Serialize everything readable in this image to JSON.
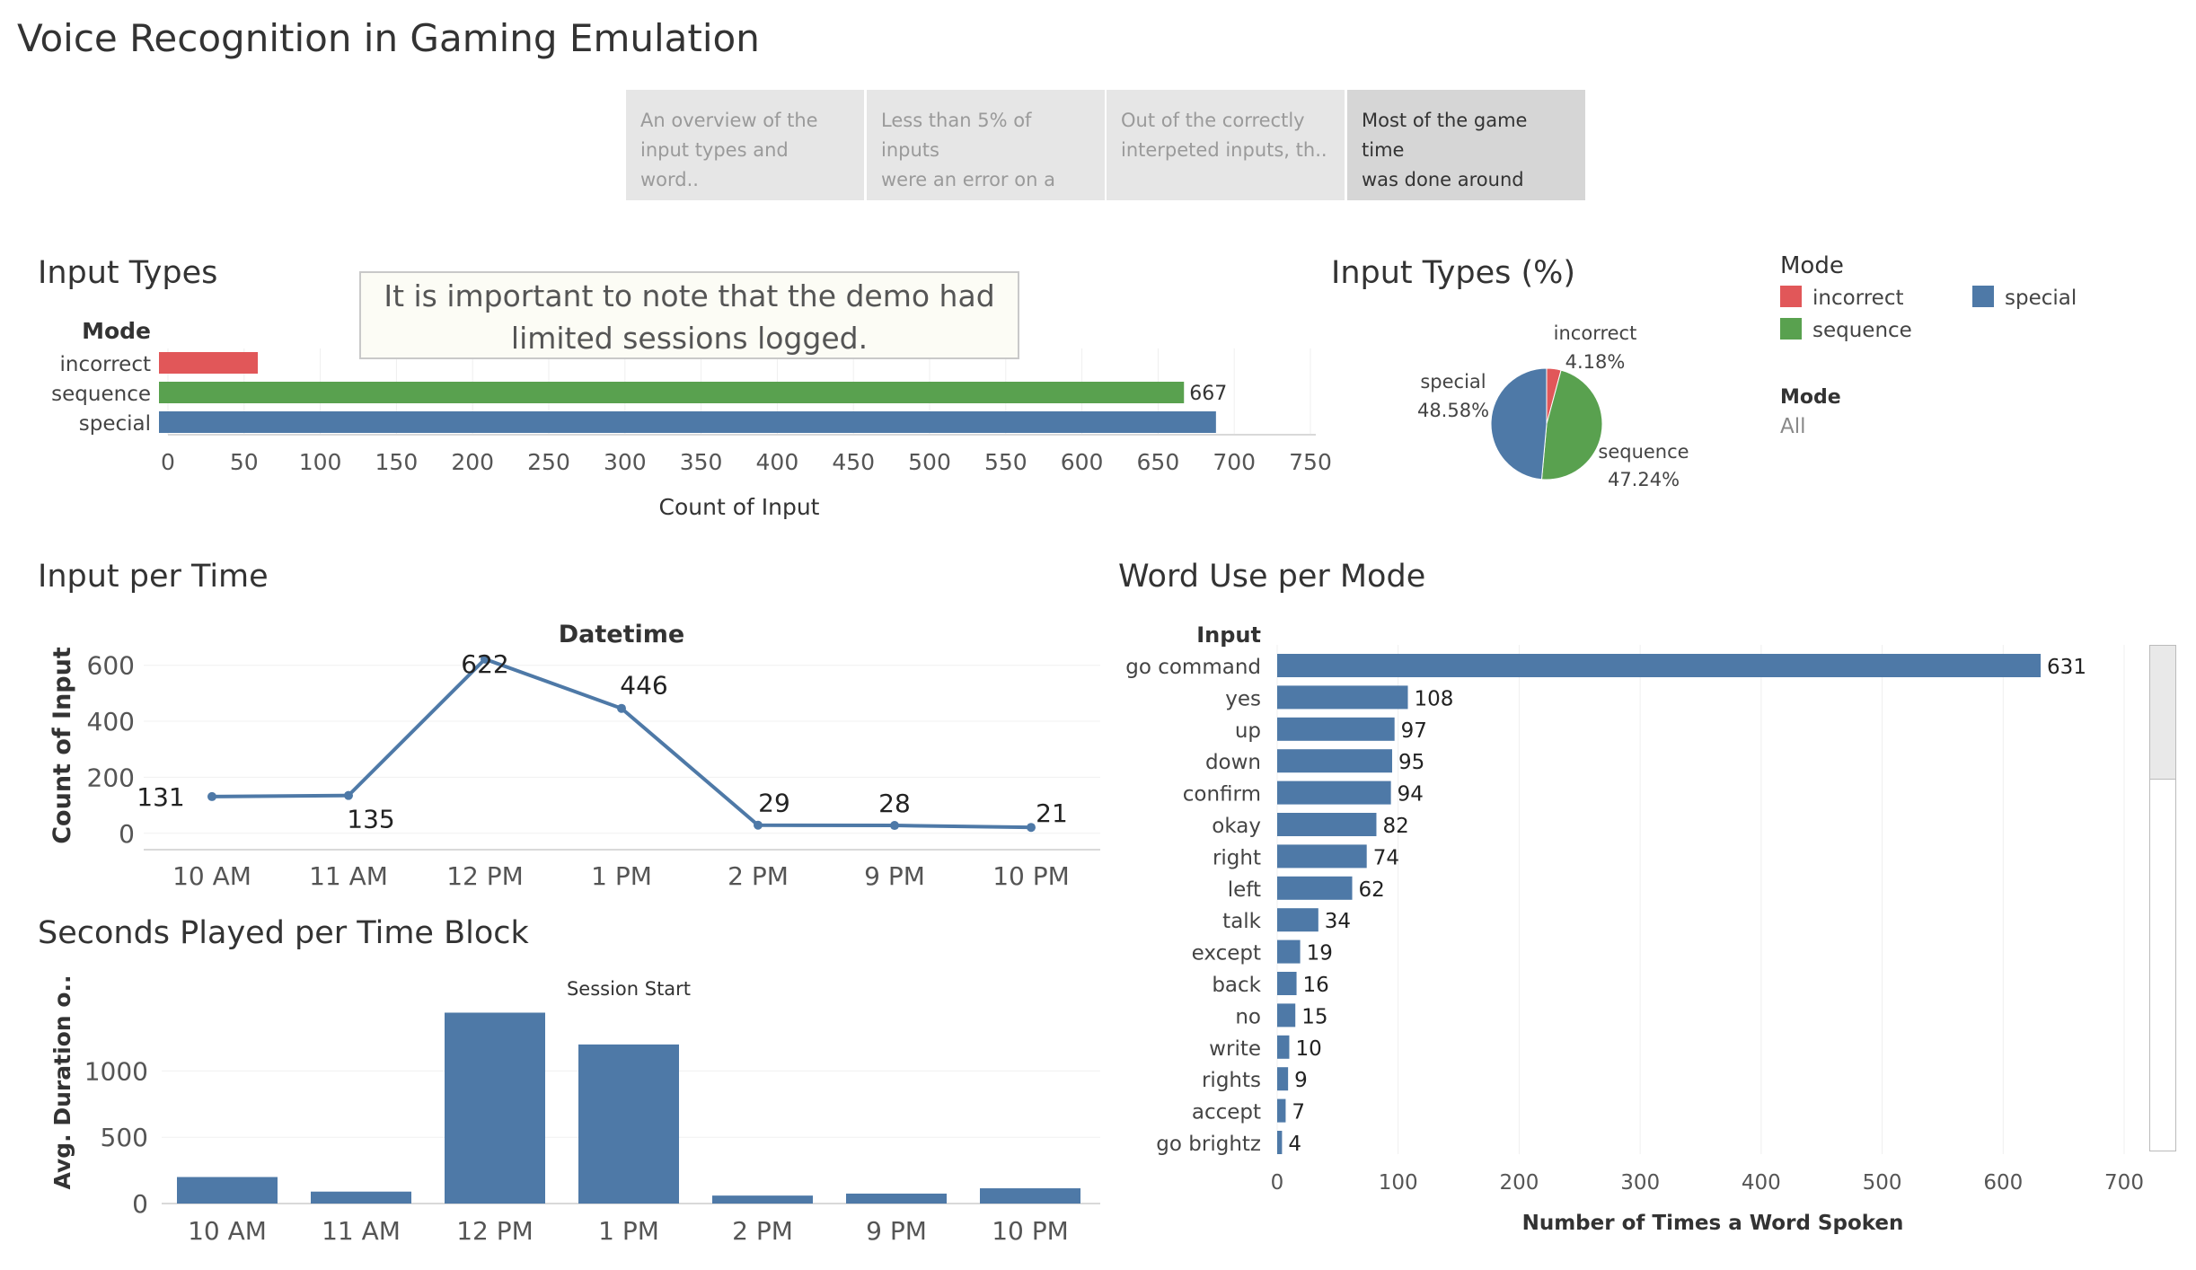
{
  "title": "Voice Recognition in Gaming Emulation",
  "story_tabs": [
    {
      "line1": "An overview of the",
      "line2": "input types and word..",
      "active": false
    },
    {
      "line1": "Less than 5% of inputs",
      "line2": "were an error on a br..",
      "active": false
    },
    {
      "line1": "Out of the correctly",
      "line2": "interpeted inputs, th..",
      "active": false
    },
    {
      "line1": "Most of the game time",
      "line2": "was done around noo..",
      "active": true
    }
  ],
  "annotation": {
    "line1": "It is important to note that the demo had",
    "line2": "limited sessions logged."
  },
  "legend": {
    "title": "Mode",
    "items": [
      {
        "label": "incorrect",
        "color": "#e15759"
      },
      {
        "label": "sequence",
        "color": "#59a14f"
      },
      {
        "label": "special",
        "color": "#4e79a7"
      }
    ],
    "filter_label": "Mode",
    "filter_value": "All"
  },
  "chart_data": [
    {
      "id": "input-types",
      "type": "bar",
      "orientation": "horizontal",
      "title": "Input Types",
      "row_header": "Mode",
      "categories": [
        "incorrect",
        "sequence",
        "special"
      ],
      "values": [
        59,
        667,
        688
      ],
      "colors": [
        "#e15759",
        "#59a14f",
        "#4e79a7"
      ],
      "data_labels": [
        null,
        "667",
        null
      ],
      "xlabel": "Count of Input",
      "xlim": [
        0,
        750
      ],
      "xticks": [
        0,
        50,
        100,
        150,
        200,
        250,
        300,
        350,
        400,
        450,
        500,
        550,
        600,
        650,
        700,
        750
      ]
    },
    {
      "id": "input-types-pct",
      "type": "pie",
      "title": "Input Types (%)",
      "slices": [
        {
          "label": "incorrect",
          "value": 4.18,
          "display": "4.18%",
          "color": "#e15759"
        },
        {
          "label": "sequence",
          "value": 47.24,
          "display": "47.24%",
          "color": "#59a14f"
        },
        {
          "label": "special",
          "value": 48.58,
          "display": "48.58%",
          "color": "#4e79a7"
        }
      ]
    },
    {
      "id": "input-per-time",
      "type": "line",
      "title": "Input per Time",
      "header": "Datetime",
      "categories": [
        "10 AM",
        "11 AM",
        "12 PM",
        "1 PM",
        "2 PM",
        "9 PM",
        "10 PM"
      ],
      "values": [
        131,
        135,
        622,
        446,
        29,
        28,
        21
      ],
      "ylabel": "Count of Input",
      "ylim": [
        -20,
        660
      ],
      "yticks": [
        0,
        200,
        400,
        600
      ],
      "color": "#4e79a7"
    },
    {
      "id": "seconds-played",
      "type": "bar",
      "title": "Seconds Played per Time Block",
      "header": "Session Start",
      "categories": [
        "10 AM",
        "11 AM",
        "12 PM",
        "1 PM",
        "2 PM",
        "9 PM",
        "10 PM"
      ],
      "values": [
        200,
        90,
        1440,
        1200,
        60,
        75,
        115
      ],
      "ylabel": "Avg. Duration o..",
      "ylim": [
        0,
        1450
      ],
      "yticks": [
        0,
        500,
        1000
      ],
      "color": "#4e79a7"
    },
    {
      "id": "word-use",
      "type": "bar",
      "orientation": "horizontal",
      "title": "Word Use per Mode",
      "row_header": "Input",
      "categories": [
        "go command",
        "yes",
        "up",
        "down",
        "confirm",
        "okay",
        "right",
        "left",
        "talk",
        "except",
        "back",
        "no",
        "write",
        "rights",
        "accept",
        "go brightz"
      ],
      "values": [
        631,
        108,
        97,
        95,
        94,
        82,
        74,
        62,
        34,
        19,
        16,
        15,
        10,
        9,
        7,
        4
      ],
      "xlabel": "Number of Times a Word Spoken",
      "xlim": [
        0,
        700
      ],
      "xticks": [
        0,
        100,
        200,
        300,
        400,
        500,
        600,
        700
      ],
      "color": "#4e79a7"
    }
  ]
}
